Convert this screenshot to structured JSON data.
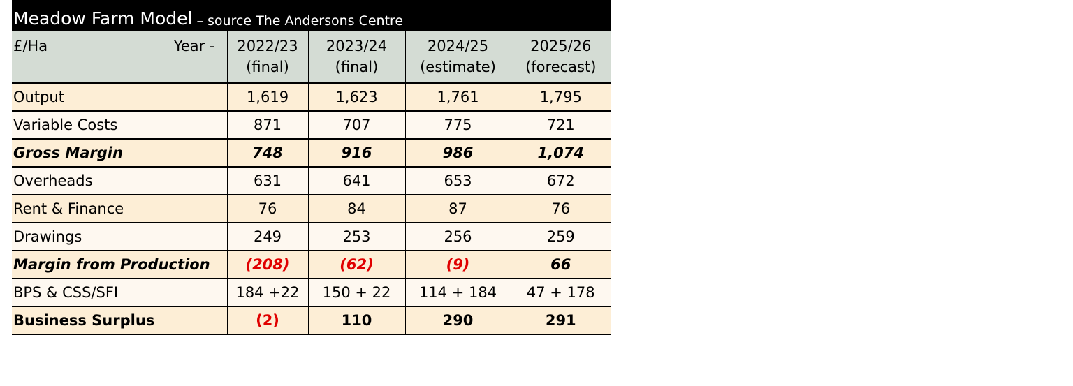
{
  "title": {
    "main": "Meadow Farm Model",
    "source": "– source The Andersons Centre"
  },
  "header": {
    "unit": "£/Ha",
    "year_label": "Year -",
    "columns": [
      {
        "year": "2022/23",
        "status": "(final)"
      },
      {
        "year": "2023/24",
        "status": "(final)"
      },
      {
        "year": "2024/25",
        "status": "(estimate)"
      },
      {
        "year": "2025/26",
        "status": "(forecast)"
      }
    ]
  },
  "rows": [
    {
      "label": "Output",
      "values": [
        "1,619",
        "1,623",
        "1,761",
        "1,795"
      ]
    },
    {
      "label": "Variable Costs",
      "values": [
        "871",
        "707",
        "775",
        "721"
      ]
    },
    {
      "label": "Gross Margin",
      "values": [
        "748",
        "916",
        "986",
        "1,074"
      ]
    },
    {
      "label": "Overheads",
      "values": [
        "631",
        "641",
        "653",
        "672"
      ]
    },
    {
      "label": "Rent & Finance",
      "values": [
        "76",
        "84",
        "87",
        "76"
      ]
    },
    {
      "label": "Drawings",
      "values": [
        "249",
        "253",
        "256",
        "259"
      ]
    },
    {
      "label": "Margin from Production",
      "values": [
        "(208)",
        "(62)",
        "(9)",
        "66"
      ]
    },
    {
      "label": "BPS & CSS/SFI",
      "values": [
        "184 +22",
        "150 + 22",
        "114 + 184",
        "47 + 178"
      ]
    },
    {
      "label": "Business Surplus",
      "values": [
        "(2)",
        "110",
        "290",
        "291"
      ]
    }
  ],
  "colors": {
    "title_background": "#000000",
    "header_background": "#d4dcd4",
    "row_background": "#fdeed6",
    "row_background_light": "#fef8f0",
    "negative_text": "#e00000"
  }
}
